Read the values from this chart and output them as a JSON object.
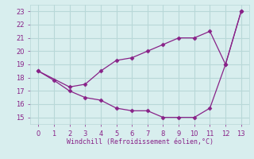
{
  "line1_x": [
    0,
    2,
    3,
    4,
    5,
    6,
    7,
    8,
    9,
    10,
    11,
    12,
    13
  ],
  "line1_y": [
    18.5,
    17.3,
    17.5,
    18.5,
    19.3,
    19.5,
    20.0,
    20.5,
    21.0,
    21.0,
    21.5,
    19.0,
    23.0
  ],
  "line2_x": [
    0,
    1,
    2,
    3,
    4,
    5,
    6,
    7,
    8,
    9,
    10,
    11,
    12,
    13
  ],
  "line2_y": [
    18.5,
    17.8,
    17.0,
    16.5,
    16.3,
    15.7,
    15.5,
    15.5,
    15.0,
    15.0,
    15.0,
    15.7,
    19.0,
    23.0
  ],
  "color": "#882288",
  "xlabel": "Windchill (Refroidissement éolien,°C)",
  "xlim": [
    -0.5,
    13.5
  ],
  "ylim": [
    14.5,
    23.5
  ],
  "yticks": [
    15,
    16,
    17,
    18,
    19,
    20,
    21,
    22,
    23
  ],
  "xticks": [
    0,
    1,
    2,
    3,
    4,
    5,
    6,
    7,
    8,
    9,
    10,
    11,
    12,
    13
  ],
  "bg_color": "#d8eeee",
  "grid_color": "#b8d8d8"
}
